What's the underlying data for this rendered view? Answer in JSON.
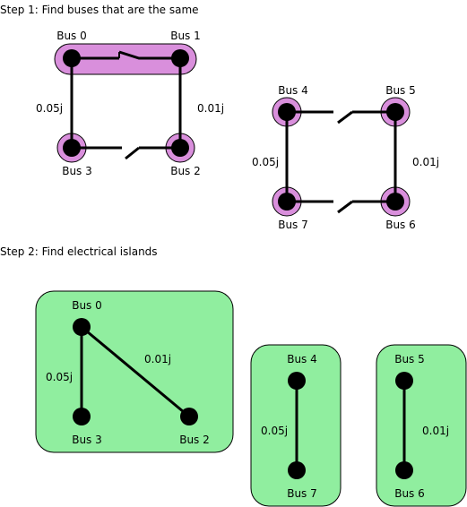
{
  "step1": {
    "title": "Step 1: Find buses that are the same",
    "buses": {
      "bus0": "Bus 0",
      "bus1": "Bus 1",
      "bus2": "Bus 2",
      "bus3": "Bus 3",
      "bus4": "Bus 4",
      "bus5": "Bus 5",
      "bus6": "Bus 6",
      "bus7": "Bus 7"
    },
    "impedances": {
      "b0_b3": "0.05j",
      "b1_b2": "0.01j",
      "b4_b7": "0.05j",
      "b5_b6": "0.01j"
    },
    "switches": {
      "b0_b1": "closed",
      "b3_b2": "open",
      "b4_b5": "open",
      "b7_b6": "open"
    }
  },
  "step2": {
    "title": "Step 2: Find electrical islands",
    "islands": [
      {
        "buses": [
          "Bus 0",
          "Bus 3",
          "Bus 2"
        ],
        "impedances": [
          "0.05j",
          "0.01j"
        ]
      },
      {
        "buses": [
          "Bus 4",
          "Bus 7"
        ],
        "impedances": [
          "0.05j"
        ]
      },
      {
        "buses": [
          "Bus 5",
          "Bus 6"
        ],
        "impedances": [
          "0.01j"
        ]
      }
    ]
  },
  "colors": {
    "same_bus_highlight": "#d98fdc",
    "island_fill": "#90ee9f",
    "node": "#000000",
    "line": "#000000"
  }
}
